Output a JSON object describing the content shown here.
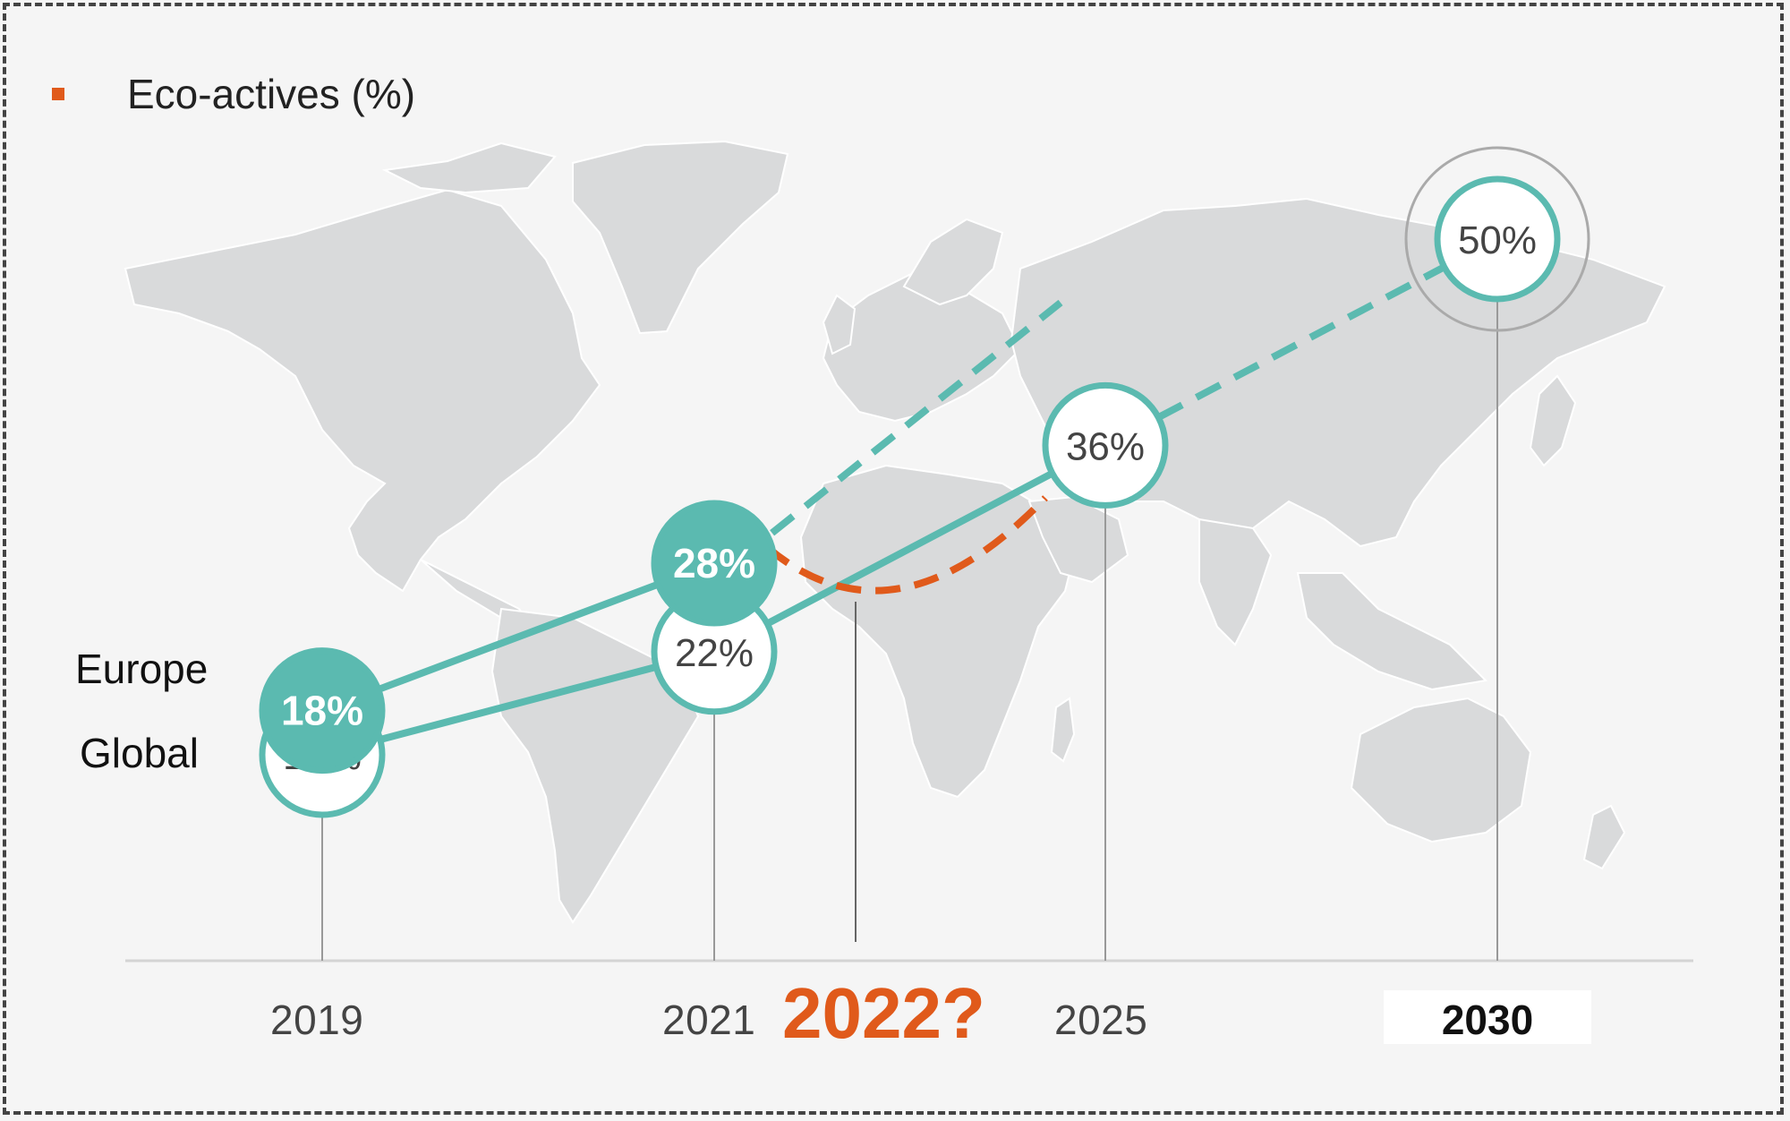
{
  "legend": {
    "label": "Eco-actives (%)",
    "color": "#e05a1b"
  },
  "colors": {
    "teal": "#5bbab0",
    "orange": "#e05a1b",
    "map": "#d9dadb",
    "axis": "#999999"
  },
  "chart_data": {
    "type": "line",
    "x": [
      "2019",
      "2021",
      "2022?",
      "2025",
      "2030"
    ],
    "series": [
      {
        "name": "Europe",
        "points": [
          {
            "x": "2019",
            "y": 18,
            "label": "18%"
          },
          {
            "x": "2021",
            "y": 28,
            "label": "28%"
          }
        ],
        "style": "filled",
        "projection": "dashed"
      },
      {
        "name": "Global",
        "points": [
          {
            "x": "2019",
            "y": 15,
            "label": "15%"
          },
          {
            "x": "2021",
            "y": 22,
            "label": "22%"
          },
          {
            "x": "2025",
            "y": 36,
            "label": "36%"
          },
          {
            "x": "2030",
            "y": 50,
            "label": "50%"
          }
        ],
        "style": "outline",
        "projection": "dashed"
      }
    ],
    "highlight": "2022?",
    "legend": "top-left",
    "grid": false
  }
}
